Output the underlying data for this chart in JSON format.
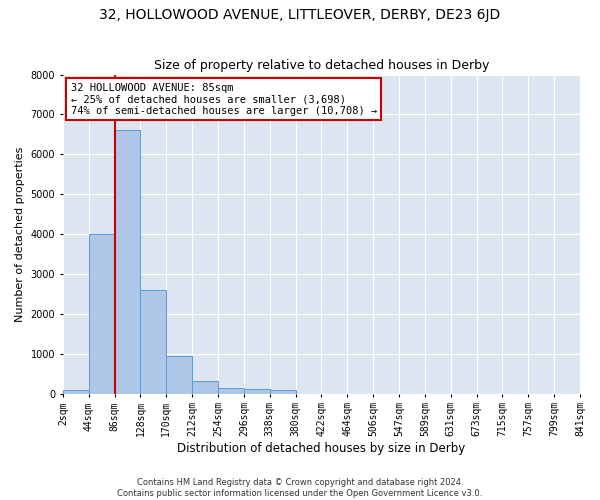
{
  "title": "32, HOLLOWOOD AVENUE, LITTLEOVER, DERBY, DE23 6JD",
  "subtitle": "Size of property relative to detached houses in Derby",
  "xlabel": "Distribution of detached houses by size in Derby",
  "ylabel": "Number of detached properties",
  "footer_line1": "Contains HM Land Registry data © Crown copyright and database right 2024.",
  "footer_line2": "Contains public sector information licensed under the Open Government Licence v3.0.",
  "bin_labels": [
    "2sqm",
    "44sqm",
    "86sqm",
    "128sqm",
    "170sqm",
    "212sqm",
    "254sqm",
    "296sqm",
    "338sqm",
    "380sqm",
    "422sqm",
    "464sqm",
    "506sqm",
    "547sqm",
    "589sqm",
    "631sqm",
    "673sqm",
    "715sqm",
    "757sqm",
    "799sqm",
    "841sqm"
  ],
  "bar_values": [
    80,
    4000,
    6600,
    2600,
    950,
    310,
    130,
    110,
    90,
    0,
    0,
    0,
    0,
    0,
    0,
    0,
    0,
    0,
    0,
    0
  ],
  "bar_color": "#aec6e8",
  "bar_edge_color": "#5b9bd5",
  "background_color": "#dde5f0",
  "grid_color": "#ffffff",
  "ylim": [
    0,
    8000
  ],
  "annotation_text": "32 HOLLOWOOD AVENUE: 85sqm\n← 25% of detached houses are smaller (3,698)\n74% of semi-detached houses are larger (10,708) →",
  "annotation_box_color": "#ffffff",
  "annotation_box_edge_color": "#cc0000",
  "property_line_x": 86,
  "property_line_color": "#cc0000",
  "title_fontsize": 10,
  "subtitle_fontsize": 9,
  "annotation_fontsize": 7.5,
  "tick_fontsize": 7,
  "ylabel_fontsize": 8,
  "xlabel_fontsize": 8.5,
  "footer_fontsize": 6,
  "fig_bg": "#ffffff"
}
